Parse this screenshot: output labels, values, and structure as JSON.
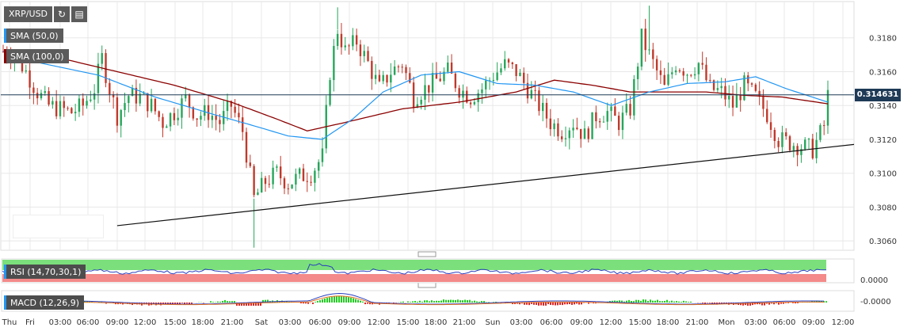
{
  "symbol": {
    "label": "XRP/USD",
    "refresh_icon": "refresh-icon",
    "chart_type_icon": "bar-chart-icon"
  },
  "indicators": {
    "sma50": {
      "label": "SMA (50,0)",
      "color": "#2196f3"
    },
    "sma100": {
      "label": "SMA (100,0)",
      "color": "#8b0000"
    },
    "rsi": {
      "label": "RSI (14,70,30,1)",
      "value_label": "0.0000"
    },
    "macd": {
      "label": "MACD (12,26,9)",
      "value_label": "-0.0000"
    }
  },
  "current_price": "0.314631",
  "colors": {
    "up": "#26a65b",
    "down": "#c0392b",
    "grid": "#e8e8e8",
    "price_line": "#1f3a57"
  },
  "chart_data": {
    "type": "candlestick",
    "y_ticks": [
      "0.3180",
      "0.3160",
      "0.3140",
      "0.3120",
      "0.3100",
      "0.3080",
      "0.3060"
    ],
    "ylim": [
      0.3054,
      0.32
    ],
    "x_ticks": [
      "Thu",
      "Fri",
      "03:00",
      "06:00",
      "09:00",
      "12:00",
      "15:00",
      "18:00",
      "21:00",
      "Sat",
      "03:00",
      "06:00",
      "09:00",
      "12:00",
      "15:00",
      "18:00",
      "21:00",
      "Sun",
      "03:00",
      "06:00",
      "09:00",
      "12:00",
      "15:00",
      "18:00",
      "21:00",
      "Mon",
      "03:00",
      "06:00",
      "09:00",
      "12:00"
    ],
    "close_path": [
      [
        0,
        0.3172
      ],
      [
        3,
        0.317
      ],
      [
        6,
        0.316
      ],
      [
        9,
        0.3148
      ],
      [
        12,
        0.314
      ],
      [
        15,
        0.3138
      ],
      [
        18,
        0.3136
      ],
      [
        21,
        0.314
      ],
      [
        24,
        0.315
      ],
      [
        26,
        0.3168
      ],
      [
        28,
        0.315
      ],
      [
        30,
        0.3134
      ],
      [
        33,
        0.3146
      ],
      [
        36,
        0.3145
      ],
      [
        39,
        0.314
      ],
      [
        42,
        0.313
      ],
      [
        45,
        0.3136
      ],
      [
        48,
        0.3144
      ],
      [
        51,
        0.3134
      ],
      [
        54,
        0.3136
      ],
      [
        57,
        0.313
      ],
      [
        60,
        0.314
      ],
      [
        63,
        0.3125
      ],
      [
        66,
        0.3085
      ],
      [
        69,
        0.3095
      ],
      [
        72,
        0.31
      ],
      [
        75,
        0.3094
      ],
      [
        78,
        0.3098
      ],
      [
        81,
        0.31
      ],
      [
        84,
        0.311
      ],
      [
        86,
        0.316
      ],
      [
        88,
        0.3185
      ],
      [
        90,
        0.3172
      ],
      [
        93,
        0.3178
      ],
      [
        96,
        0.3165
      ],
      [
        99,
        0.315
      ],
      [
        102,
        0.316
      ],
      [
        105,
        0.3165
      ],
      [
        108,
        0.3145
      ],
      [
        111,
        0.315
      ],
      [
        114,
        0.3155
      ],
      [
        117,
        0.316
      ],
      [
        120,
        0.315
      ],
      [
        123,
        0.3145
      ],
      [
        126,
        0.315
      ],
      [
        129,
        0.3158
      ],
      [
        132,
        0.3164
      ],
      [
        135,
        0.316
      ],
      [
        138,
        0.315
      ],
      [
        141,
        0.314
      ],
      [
        144,
        0.313
      ],
      [
        147,
        0.3125
      ],
      [
        150,
        0.313
      ],
      [
        153,
        0.3122
      ],
      [
        156,
        0.3134
      ],
      [
        159,
        0.3136
      ],
      [
        162,
        0.313
      ],
      [
        165,
        0.3138
      ],
      [
        168,
        0.318
      ],
      [
        171,
        0.3165
      ],
      [
        174,
        0.315
      ],
      [
        177,
        0.3165
      ],
      [
        180,
        0.316
      ],
      [
        183,
        0.3165
      ],
      [
        186,
        0.315
      ],
      [
        189,
        0.3148
      ],
      [
        192,
        0.314
      ],
      [
        195,
        0.3152
      ],
      [
        198,
        0.3145
      ],
      [
        201,
        0.3135
      ],
      [
        204,
        0.312
      ],
      [
        207,
        0.3118
      ],
      [
        210,
        0.3116
      ],
      [
        213,
        0.3114
      ],
      [
        216,
        0.3128
      ],
      [
        217,
        0.3146
      ]
    ],
    "sma50_path": [
      [
        0,
        0.3172
      ],
      [
        10,
        0.3165
      ],
      [
        25,
        0.3158
      ],
      [
        40,
        0.3145
      ],
      [
        55,
        0.3135
      ],
      [
        66,
        0.3128
      ],
      [
        75,
        0.3122
      ],
      [
        84,
        0.312
      ],
      [
        92,
        0.3132
      ],
      [
        100,
        0.3148
      ],
      [
        110,
        0.3158
      ],
      [
        120,
        0.316
      ],
      [
        130,
        0.3153
      ],
      [
        140,
        0.3152
      ],
      [
        150,
        0.3148
      ],
      [
        160,
        0.314
      ],
      [
        170,
        0.3148
      ],
      [
        180,
        0.3153
      ],
      [
        190,
        0.3154
      ],
      [
        198,
        0.3157
      ],
      [
        206,
        0.315
      ],
      [
        217,
        0.3142
      ]
    ],
    "sma100_path": [
      [
        0,
        0.3172
      ],
      [
        15,
        0.3168
      ],
      [
        30,
        0.316
      ],
      [
        45,
        0.3152
      ],
      [
        60,
        0.3142
      ],
      [
        72,
        0.3132
      ],
      [
        80,
        0.3125
      ],
      [
        90,
        0.313
      ],
      [
        105,
        0.3138
      ],
      [
        120,
        0.3142
      ],
      [
        135,
        0.3148
      ],
      [
        145,
        0.3155
      ],
      [
        155,
        0.3152
      ],
      [
        165,
        0.3148
      ],
      [
        175,
        0.3148
      ],
      [
        185,
        0.3148
      ],
      [
        195,
        0.3146
      ],
      [
        205,
        0.3145
      ],
      [
        217,
        0.3141
      ]
    ],
    "trendline": [
      [
        30,
        0.3069
      ],
      [
        226,
        0.3117
      ]
    ]
  }
}
